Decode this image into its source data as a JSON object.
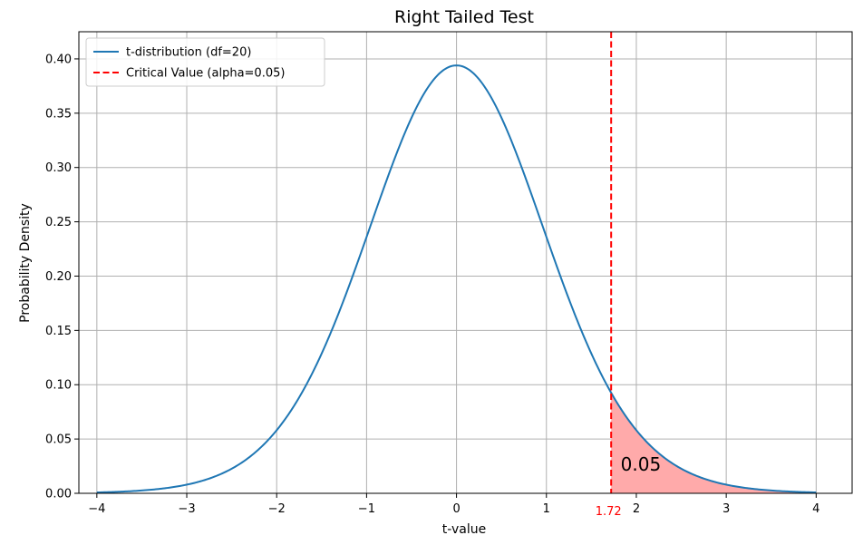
{
  "chart_data": {
    "type": "line",
    "title": "Right Tailed Test",
    "xlabel": "t-value",
    "ylabel": "Probability Density",
    "xlim": [
      -4.2,
      4.4
    ],
    "ylim": [
      0,
      0.425
    ],
    "grid": true,
    "legend_position": "top-left",
    "x_ticks": [
      -4,
      -3,
      -2,
      -1,
      0,
      1,
      2,
      3,
      4
    ],
    "x_tick_labels": [
      "−4",
      "−3",
      "−2",
      "−1",
      "0",
      "1",
      "2",
      "3",
      "4"
    ],
    "y_ticks": [
      0,
      0.05,
      0.1,
      0.15,
      0.2,
      0.25,
      0.3,
      0.35,
      0.4
    ],
    "y_tick_labels": [
      "0.00",
      "0.05",
      "0.10",
      "0.15",
      "0.20",
      "0.25",
      "0.30",
      "0.35",
      "0.40"
    ],
    "series": [
      {
        "name": "t-distribution (df=20)",
        "kind": "line",
        "color": "#1f77b4",
        "x": [
          -4.0,
          -3.5,
          -3.0,
          -2.75,
          -2.5,
          -2.25,
          -2.0,
          -1.75,
          -1.5,
          -1.25,
          -1.0,
          -0.75,
          -0.5,
          -0.25,
          0.0,
          0.25,
          0.5,
          0.75,
          1.0,
          1.25,
          1.5,
          1.72,
          1.75,
          2.0,
          2.25,
          2.5,
          2.75,
          3.0,
          3.5,
          4.0
        ],
        "y": [
          0.0015,
          0.0036,
          0.0087,
          0.0131,
          0.0195,
          0.0289,
          0.0581,
          0.0874,
          0.1282,
          0.1748,
          0.236,
          0.2991,
          0.348,
          0.3814,
          0.394,
          0.3814,
          0.348,
          0.2991,
          0.236,
          0.1748,
          0.1282,
          0.0915,
          0.0874,
          0.0581,
          0.0289,
          0.0195,
          0.0131,
          0.0087,
          0.0036,
          0.0015
        ]
      },
      {
        "name": "Critical Value (alpha=0.05)",
        "kind": "vline",
        "color": "#ff0000",
        "x": 1.72
      }
    ],
    "shaded_region": {
      "from": 1.72,
      "to": 4.0,
      "color": "#ffaaaa",
      "label": "0.05"
    },
    "annotations": [
      {
        "text": "1.72",
        "color": "#ff0000",
        "at_x": 1.72,
        "position": "below-axis"
      },
      {
        "text": "0.05",
        "color": "#000000",
        "at_x": 2.05,
        "at_y": 0.021
      }
    ]
  }
}
